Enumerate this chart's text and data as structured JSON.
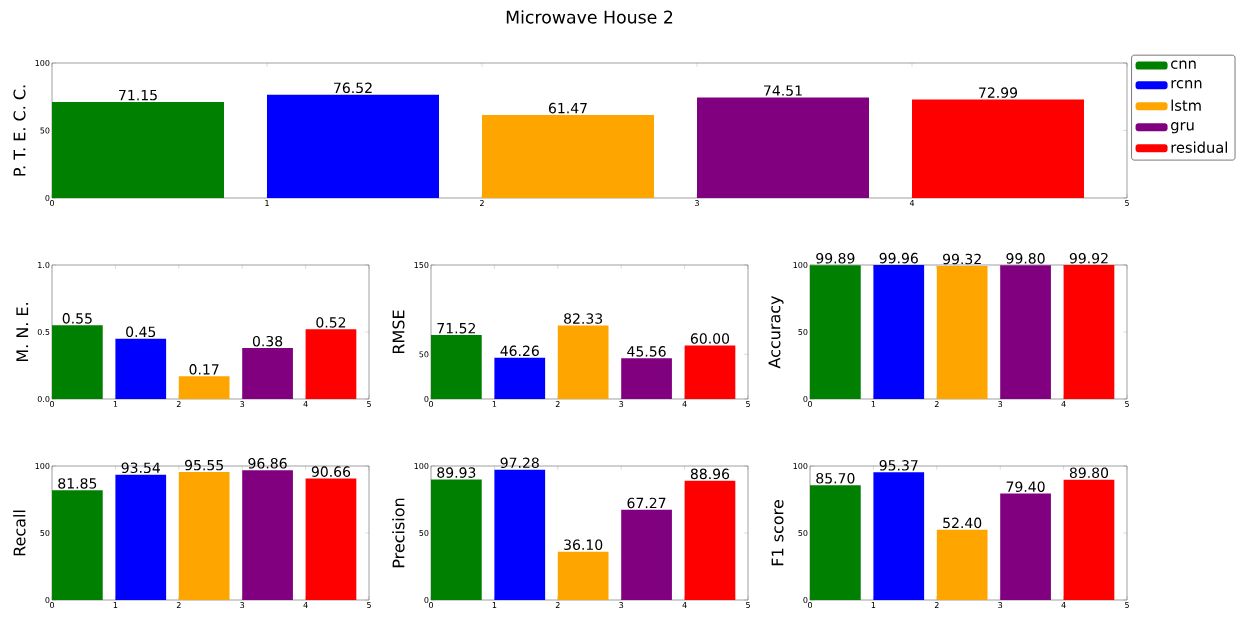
{
  "chart_data": [
    {
      "type": "bar",
      "title": "Microwave House 2",
      "ylabel": "P. T. E. C. C.",
      "xlim": [
        0,
        5
      ],
      "xticks": [
        0,
        1,
        2,
        3,
        4,
        5
      ],
      "ylim": [
        0,
        100
      ],
      "yticks": [
        0,
        50,
        100
      ],
      "legend": "right",
      "series": [
        {
          "name": "cnn",
          "color": "#008000",
          "x": [
            0.4
          ],
          "values": [
            71.15
          ],
          "value_labels": [
            "71.15"
          ]
        },
        {
          "name": "rcnn",
          "color": "#0000ff",
          "x": [
            1.4
          ],
          "values": [
            76.52
          ],
          "value_labels": [
            "76.52"
          ]
        },
        {
          "name": "lstm",
          "color": "#ffa500",
          "x": [
            2.4
          ],
          "values": [
            61.47
          ],
          "value_labels": [
            "61.47"
          ]
        },
        {
          "name": "gru",
          "color": "#800080",
          "x": [
            3.4
          ],
          "values": [
            74.51
          ],
          "value_labels": [
            "74.51"
          ]
        },
        {
          "name": "residual",
          "color": "#ff0000",
          "x": [
            4.4
          ],
          "values": [
            72.99
          ],
          "value_labels": [
            "72.99"
          ]
        }
      ]
    },
    {
      "type": "bar",
      "ylabel": "M. N. E.",
      "xlim": [
        0,
        5
      ],
      "xticks": [
        0,
        1,
        2,
        3,
        4,
        5
      ],
      "ylim": [
        0,
        1
      ],
      "yticks": [
        {
          "value": 0,
          "label": "0.0"
        },
        {
          "value": 0.5,
          "label": "0.5"
        },
        {
          "value": 1,
          "label": "1.0"
        }
      ],
      "series": [
        {
          "color": "#008000",
          "x": [
            0.4
          ],
          "values": [
            0.55
          ],
          "value_labels": [
            "0.55"
          ]
        },
        {
          "color": "#0000ff",
          "x": [
            1.4
          ],
          "values": [
            0.45
          ],
          "value_labels": [
            "0.45"
          ]
        },
        {
          "color": "#ffa500",
          "x": [
            2.4
          ],
          "values": [
            0.17
          ],
          "value_labels": [
            "0.17"
          ]
        },
        {
          "color": "#800080",
          "x": [
            3.4
          ],
          "values": [
            0.38
          ],
          "value_labels": [
            "0.38"
          ]
        },
        {
          "color": "#ff0000",
          "x": [
            4.4
          ],
          "values": [
            0.52
          ],
          "value_labels": [
            "0.52"
          ]
        }
      ]
    },
    {
      "type": "bar",
      "ylabel": "RMSE",
      "xlim": [
        0,
        5
      ],
      "xticks": [
        0,
        1,
        2,
        3,
        4,
        5
      ],
      "ylim": [
        0,
        150
      ],
      "yticks": [
        0,
        50,
        150
      ],
      "series": [
        {
          "color": "#008000",
          "x": [
            0.4
          ],
          "values": [
            71.52
          ],
          "value_labels": [
            "71.52"
          ]
        },
        {
          "color": "#0000ff",
          "x": [
            1.4
          ],
          "values": [
            46.26
          ],
          "value_labels": [
            "46.26"
          ]
        },
        {
          "color": "#ffa500",
          "x": [
            2.4
          ],
          "values": [
            82.33
          ],
          "value_labels": [
            "82.33"
          ]
        },
        {
          "color": "#800080",
          "x": [
            3.4
          ],
          "values": [
            45.56
          ],
          "value_labels": [
            "45.56"
          ]
        },
        {
          "color": "#ff0000",
          "x": [
            4.4
          ],
          "values": [
            60.0
          ],
          "value_labels": [
            "60.00"
          ]
        }
      ]
    },
    {
      "type": "bar",
      "ylabel": "Accuracy",
      "xlim": [
        0,
        5
      ],
      "xticks": [
        0,
        1,
        2,
        3,
        4,
        5
      ],
      "ylim": [
        0,
        100
      ],
      "yticks": [
        0,
        50,
        100
      ],
      "series": [
        {
          "color": "#008000",
          "x": [
            0.4
          ],
          "values": [
            99.89
          ],
          "value_labels": [
            "99.89"
          ]
        },
        {
          "color": "#0000ff",
          "x": [
            1.4
          ],
          "values": [
            99.96
          ],
          "value_labels": [
            "99.96"
          ]
        },
        {
          "color": "#ffa500",
          "x": [
            2.4
          ],
          "values": [
            99.32
          ],
          "value_labels": [
            "99.32"
          ]
        },
        {
          "color": "#800080",
          "x": [
            3.4
          ],
          "values": [
            99.8
          ],
          "value_labels": [
            "99.80"
          ]
        },
        {
          "color": "#ff0000",
          "x": [
            4.4
          ],
          "values": [
            99.92
          ],
          "value_labels": [
            "99.92"
          ]
        }
      ]
    },
    {
      "type": "bar",
      "ylabel": "Recall",
      "xlim": [
        0,
        5
      ],
      "xticks": [
        0,
        1,
        2,
        3,
        4,
        5
      ],
      "ylim": [
        0,
        100
      ],
      "yticks": [
        0,
        50,
        100
      ],
      "series": [
        {
          "color": "#008000",
          "x": [
            0.4
          ],
          "values": [
            81.85
          ],
          "value_labels": [
            "81.85"
          ]
        },
        {
          "color": "#0000ff",
          "x": [
            1.4
          ],
          "values": [
            93.54
          ],
          "value_labels": [
            "93.54"
          ]
        },
        {
          "color": "#ffa500",
          "x": [
            2.4
          ],
          "values": [
            95.55
          ],
          "value_labels": [
            "95.55"
          ]
        },
        {
          "color": "#800080",
          "x": [
            3.4
          ],
          "values": [
            96.86
          ],
          "value_labels": [
            "96.86"
          ]
        },
        {
          "color": "#ff0000",
          "x": [
            4.4
          ],
          "values": [
            90.66
          ],
          "value_labels": [
            "90.66"
          ]
        }
      ]
    },
    {
      "type": "bar",
      "ylabel": "Precision",
      "xlim": [
        0,
        5
      ],
      "xticks": [
        0,
        1,
        2,
        3,
        4,
        5
      ],
      "ylim": [
        0,
        100
      ],
      "yticks": [
        0,
        50,
        100
      ],
      "series": [
        {
          "color": "#008000",
          "x": [
            0.4
          ],
          "values": [
            89.93
          ],
          "value_labels": [
            "89.93"
          ]
        },
        {
          "color": "#0000ff",
          "x": [
            1.4
          ],
          "values": [
            97.28
          ],
          "value_labels": [
            "97.28"
          ]
        },
        {
          "color": "#ffa500",
          "x": [
            2.4
          ],
          "values": [
            36.1
          ],
          "value_labels": [
            "36.10"
          ]
        },
        {
          "color": "#800080",
          "x": [
            3.4
          ],
          "values": [
            67.27
          ],
          "value_labels": [
            "67.27"
          ]
        },
        {
          "color": "#ff0000",
          "x": [
            4.4
          ],
          "values": [
            88.96
          ],
          "value_labels": [
            "88.96"
          ]
        }
      ]
    },
    {
      "type": "bar",
      "ylabel": "F1 score",
      "xlim": [
        0,
        5
      ],
      "xticks": [
        0,
        1,
        2,
        3,
        4,
        5
      ],
      "ylim": [
        0,
        100
      ],
      "yticks": [
        0,
        50,
        100
      ],
      "series": [
        {
          "color": "#008000",
          "x": [
            0.4
          ],
          "values": [
            85.7
          ],
          "value_labels": [
            "85.70"
          ]
        },
        {
          "color": "#0000ff",
          "x": [
            1.4
          ],
          "values": [
            95.37
          ],
          "value_labels": [
            "95.37"
          ]
        },
        {
          "color": "#ffa500",
          "x": [
            2.4
          ],
          "values": [
            52.4
          ],
          "value_labels": [
            "52.40"
          ]
        },
        {
          "color": "#800080",
          "x": [
            3.4
          ],
          "values": [
            79.4
          ],
          "value_labels": [
            "79.40"
          ]
        },
        {
          "color": "#ff0000",
          "x": [
            4.4
          ],
          "values": [
            89.8
          ],
          "value_labels": [
            "89.80"
          ]
        }
      ]
    }
  ]
}
